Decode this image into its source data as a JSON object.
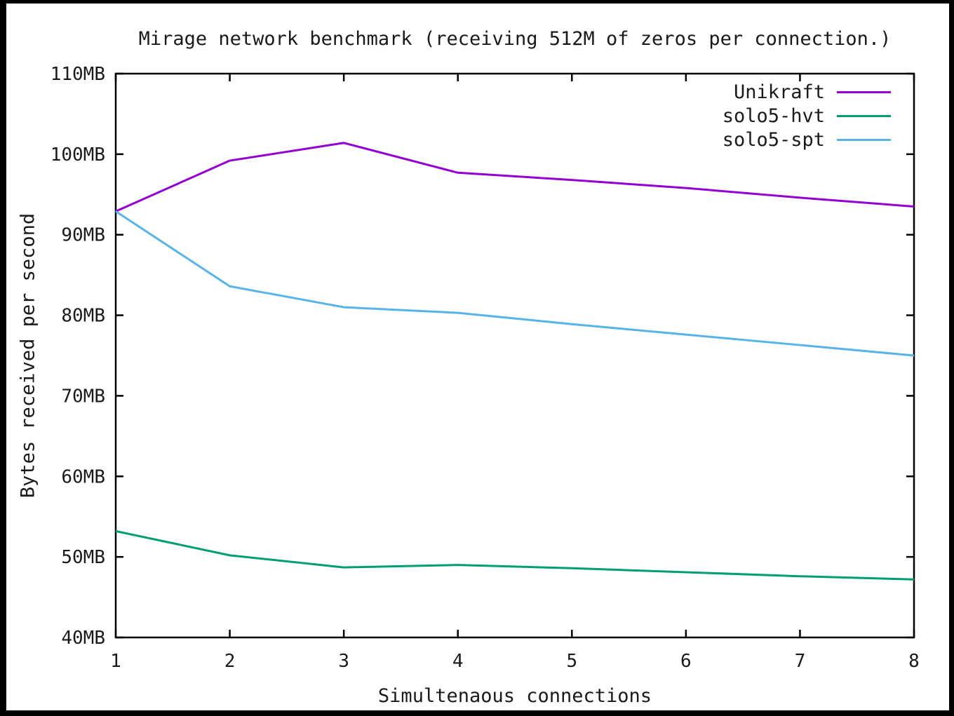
{
  "window": {
    "background": "#ffffff",
    "frame_color": "#000000"
  },
  "chart_data": {
    "type": "line",
    "title": "Mirage network benchmark (receiving 512M of zeros per connection.)",
    "xlabel": "Simultenaous connections",
    "ylabel": "Bytes received per second",
    "x": [
      1,
      2,
      3,
      4,
      5,
      6,
      7,
      8
    ],
    "xtick_labels": [
      "1",
      "2",
      "3",
      "4",
      "5",
      "6",
      "7",
      "8"
    ],
    "ytick_values": [
      40,
      50,
      60,
      70,
      80,
      90,
      100,
      110
    ],
    "ytick_labels": [
      "40MB",
      "50MB",
      "60MB",
      "70MB",
      "80MB",
      "90MB",
      "100MB",
      "110MB"
    ],
    "ytick_suffix": "MB",
    "xlim": [
      1,
      8
    ],
    "ylim": [
      40,
      110
    ],
    "grid": false,
    "legend_position": "top-right",
    "series": [
      {
        "name": "Unikraft",
        "color": "#9400d3",
        "values": [
          92.9,
          99.2,
          101.4,
          97.7,
          96.8,
          95.8,
          94.6,
          93.5
        ]
      },
      {
        "name": "solo5-hvt",
        "color": "#009e73",
        "values": [
          53.2,
          50.2,
          48.7,
          49.0,
          48.6,
          48.1,
          47.6,
          47.2
        ]
      },
      {
        "name": "solo5-spt",
        "color": "#56b4e9",
        "values": [
          92.9,
          83.6,
          81.0,
          80.3,
          78.9,
          77.6,
          76.3,
          75.0
        ]
      }
    ]
  }
}
